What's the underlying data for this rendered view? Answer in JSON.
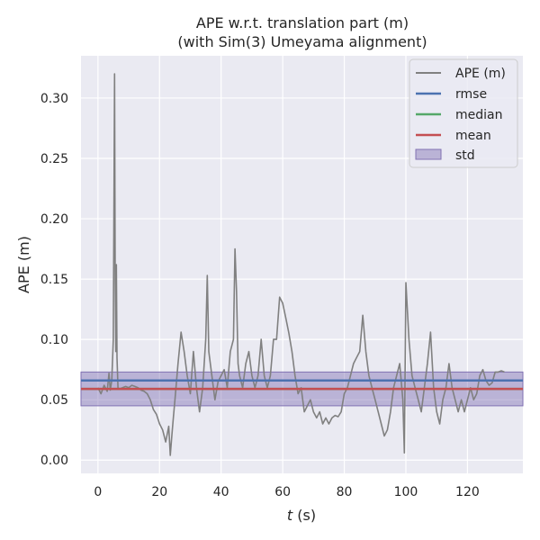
{
  "chart_data": {
    "type": "line",
    "title": "APE w.r.t. translation part (m)",
    "subtitle": "(with Sim(3) Umeyama alignment)",
    "xlabel_italic": "t",
    "xlabel_rest": " (s)",
    "ylabel": "APE (m)",
    "xlim": [
      -5.5,
      138
    ],
    "ylim": [
      -0.011,
      0.335
    ],
    "x_ticks": [
      0,
      20,
      40,
      60,
      80,
      100,
      120
    ],
    "x_tick_labels": [
      "0",
      "20",
      "40",
      "60",
      "80",
      "100",
      "120"
    ],
    "y_ticks": [
      0.0,
      0.05,
      0.1,
      0.15,
      0.2,
      0.25,
      0.3
    ],
    "y_tick_labels": [
      "0.00",
      "0.05",
      "0.10",
      "0.15",
      "0.20",
      "0.25",
      "0.30"
    ],
    "grid": true,
    "legend_position": "top-right",
    "stats": {
      "rmse": 0.066,
      "median": 0.059,
      "mean": 0.059,
      "std": 0.014
    },
    "series": [
      {
        "name": "APE (m)",
        "color": "#808080",
        "x": [
          0,
          1,
          2,
          3,
          3.6,
          4,
          4.5,
          5,
          5.4,
          5.6,
          5.8,
          6,
          6.2,
          6.5,
          7,
          8,
          9,
          10,
          11,
          12,
          13,
          14,
          15,
          16,
          17,
          18,
          19,
          20,
          21,
          22,
          23,
          23.5,
          24,
          24.5,
          25,
          26,
          27,
          28,
          29,
          30,
          31,
          32,
          33,
          34,
          35,
          35.5,
          36,
          37,
          38,
          39,
          40,
          41,
          42,
          43,
          44,
          44.5,
          45,
          45.5,
          46,
          47,
          48,
          49,
          50,
          51,
          52,
          53,
          54,
          55,
          56,
          57,
          58,
          59,
          60,
          61,
          62,
          63,
          64,
          65,
          66,
          67,
          68,
          69,
          70,
          71,
          72,
          73,
          74,
          75,
          76,
          77,
          78,
          79,
          80,
          81,
          82,
          83,
          84,
          85,
          86,
          87,
          88,
          89,
          90,
          91,
          92,
          93,
          94,
          95,
          96,
          97,
          98,
          99,
          99.5,
          100,
          101,
          102,
          103,
          104,
          105,
          106,
          107,
          108,
          109,
          110,
          111,
          112,
          113,
          114,
          115,
          116,
          117,
          118,
          119,
          120,
          121,
          122,
          123,
          124,
          125,
          126,
          127,
          128,
          129,
          130,
          131,
          132
        ],
        "values": [
          0.06,
          0.055,
          0.062,
          0.057,
          0.072,
          0.058,
          0.066,
          0.1,
          0.32,
          0.15,
          0.09,
          0.162,
          0.085,
          0.06,
          0.059,
          0.06,
          0.061,
          0.06,
          0.062,
          0.061,
          0.06,
          0.058,
          0.057,
          0.055,
          0.05,
          0.042,
          0.038,
          0.03,
          0.025,
          0.015,
          0.028,
          0.004,
          0.02,
          0.035,
          0.05,
          0.08,
          0.106,
          0.09,
          0.07,
          0.055,
          0.09,
          0.06,
          0.04,
          0.06,
          0.1,
          0.153,
          0.09,
          0.07,
          0.05,
          0.065,
          0.07,
          0.075,
          0.06,
          0.09,
          0.1,
          0.175,
          0.14,
          0.08,
          0.07,
          0.06,
          0.08,
          0.09,
          0.07,
          0.06,
          0.07,
          0.1,
          0.07,
          0.06,
          0.07,
          0.1,
          0.1,
          0.135,
          0.13,
          0.118,
          0.105,
          0.09,
          0.07,
          0.055,
          0.06,
          0.04,
          0.045,
          0.05,
          0.04,
          0.035,
          0.04,
          0.03,
          0.035,
          0.03,
          0.035,
          0.037,
          0.036,
          0.04,
          0.055,
          0.06,
          0.07,
          0.08,
          0.085,
          0.09,
          0.12,
          0.09,
          0.07,
          0.06,
          0.05,
          0.04,
          0.03,
          0.02,
          0.025,
          0.04,
          0.06,
          0.07,
          0.08,
          0.05,
          0.006,
          0.147,
          0.1,
          0.07,
          0.06,
          0.05,
          0.04,
          0.06,
          0.08,
          0.106,
          0.06,
          0.04,
          0.03,
          0.05,
          0.06,
          0.08,
          0.06,
          0.05,
          0.04,
          0.05,
          0.04,
          0.05,
          0.06,
          0.05,
          0.055,
          0.07,
          0.075,
          0.066,
          0.062,
          0.064,
          0.073,
          0.073,
          0.074,
          0.073
        ]
      },
      {
        "name": "rmse",
        "color": "#4c72b0",
        "values_constant": 0.066
      },
      {
        "name": "median",
        "color": "#55a868",
        "values_constant": 0.059
      },
      {
        "name": "mean",
        "color": "#c44e52",
        "values_constant": 0.059
      },
      {
        "name": "std",
        "color": "#8172b3",
        "band": [
          0.045,
          0.073
        ]
      }
    ]
  }
}
